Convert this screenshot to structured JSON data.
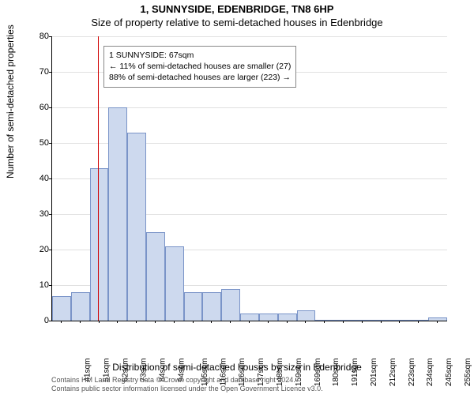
{
  "titles": {
    "line1": "1, SUNNYSIDE, EDENBRIDGE, TN8 6HP",
    "line2": "Size of property relative to semi-detached houses in Edenbridge"
  },
  "ylabel": "Number of semi-detached properties",
  "xlabel": "Distribution of semi-detached houses by size in Edenbridge",
  "footer": {
    "line1": "Contains HM Land Registry data © Crown copyright and database right 2024.",
    "line2": "Contains public sector information licensed under the Open Government Licence v3.0."
  },
  "infobox": {
    "line1": "1 SUNNYSIDE: 67sqm",
    "line2": "← 11% of semi-detached houses are smaller (27)",
    "line3": "88% of semi-detached houses are larger (223) →"
  },
  "chart": {
    "type": "histogram",
    "ylim": [
      0,
      80
    ],
    "ytick_step": 10,
    "x_start": 41,
    "x_step": 10.7,
    "x_count": 21,
    "x_unit": "sqm",
    "x_labels": [
      "41sqm",
      "51sqm",
      "62sqm",
      "73sqm",
      "84sqm",
      "94sqm",
      "105sqm",
      "116sqm",
      "126sqm",
      "137sqm",
      "148sqm",
      "159sqm",
      "169sqm",
      "180sqm",
      "191sqm",
      "201sqm",
      "212sqm",
      "223sqm",
      "234sqm",
      "245sqm",
      "255sqm"
    ],
    "values": [
      7,
      8,
      43,
      60,
      53,
      25,
      21,
      8,
      8,
      9,
      2,
      2,
      2,
      3,
      0,
      0,
      0,
      0,
      0,
      0,
      1
    ],
    "bar_fill": "#cdd9ee",
    "bar_stroke": "#7a94c8",
    "marker_x": 67,
    "marker_color": "#d00000",
    "grid_color": "#e0e0e0",
    "background_color": "#ffffff",
    "title_fontsize": 13,
    "label_fontsize": 12,
    "tick_fontsize": 11
  }
}
